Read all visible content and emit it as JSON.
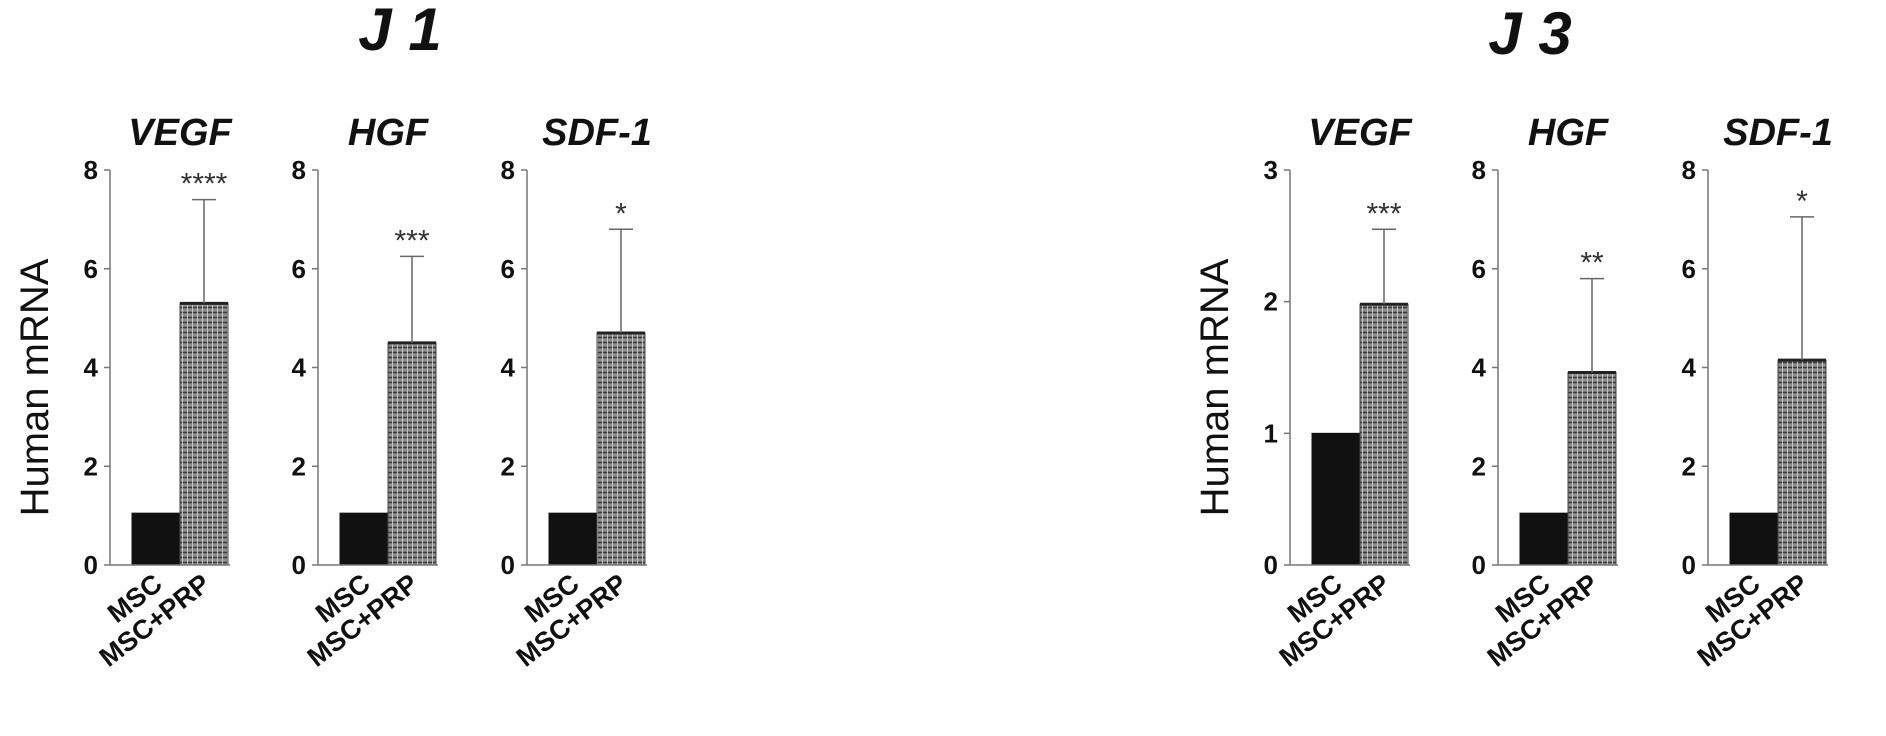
{
  "figure": {
    "titles": [
      "J 1",
      "J 3"
    ]
  },
  "chart_data": [
    {
      "type": "bar",
      "group": "J 1",
      "title": "VEGF",
      "ylabel": "Human mRNA",
      "categories": [
        "MSC",
        "MSC+PRP"
      ],
      "values": [
        1.05,
        5.3
      ],
      "error_upper": [
        null,
        7.4
      ],
      "significance": "****",
      "ylim": [
        0,
        8
      ],
      "yticks": [
        0,
        2,
        4,
        6,
        8
      ],
      "colors": [
        "#111111",
        "#6e6e6e"
      ]
    },
    {
      "type": "bar",
      "group": "J 1",
      "title": "HGF",
      "ylabel": "",
      "categories": [
        "MSC",
        "MSC+PRP"
      ],
      "values": [
        1.05,
        4.5
      ],
      "error_upper": [
        null,
        6.25
      ],
      "significance": "***",
      "ylim": [
        0,
        8
      ],
      "yticks": [
        0,
        2,
        4,
        6,
        8
      ],
      "colors": [
        "#111111",
        "#6e6e6e"
      ]
    },
    {
      "type": "bar",
      "group": "J 1",
      "title": "SDF-1",
      "ylabel": "",
      "categories": [
        "MSC",
        "MSC+PRP"
      ],
      "values": [
        1.05,
        4.7
      ],
      "error_upper": [
        null,
        6.8
      ],
      "significance": "*",
      "ylim": [
        0,
        8
      ],
      "yticks": [
        0,
        2,
        4,
        6,
        8
      ],
      "colors": [
        "#111111",
        "#6e6e6e"
      ]
    },
    {
      "type": "bar",
      "group": "J 3",
      "title": "VEGF",
      "ylabel": "Human mRNA",
      "categories": [
        "MSC",
        "MSC+PRP"
      ],
      "values": [
        1.0,
        1.98
      ],
      "error_upper": [
        null,
        2.55
      ],
      "significance": "***",
      "ylim": [
        0,
        3
      ],
      "yticks": [
        0,
        1,
        2,
        3
      ],
      "colors": [
        "#111111",
        "#6e6e6e"
      ]
    },
    {
      "type": "bar",
      "group": "J 3",
      "title": "HGF",
      "ylabel": "",
      "categories": [
        "MSC",
        "MSC+PRP"
      ],
      "values": [
        1.05,
        3.9
      ],
      "error_upper": [
        null,
        5.8
      ],
      "significance": "**",
      "ylim": [
        0,
        8
      ],
      "yticks": [
        0,
        2,
        4,
        6,
        8
      ],
      "colors": [
        "#111111",
        "#6e6e6e"
      ]
    },
    {
      "type": "bar",
      "group": "J 3",
      "title": "SDF-1",
      "ylabel": "",
      "categories": [
        "MSC",
        "MSC+PRP"
      ],
      "values": [
        1.05,
        4.15
      ],
      "error_upper": [
        null,
        7.05
      ],
      "significance": "*",
      "ylim": [
        0,
        8
      ],
      "yticks": [
        0,
        2,
        4,
        6,
        8
      ],
      "colors": [
        "#111111",
        "#6e6e6e"
      ]
    }
  ]
}
